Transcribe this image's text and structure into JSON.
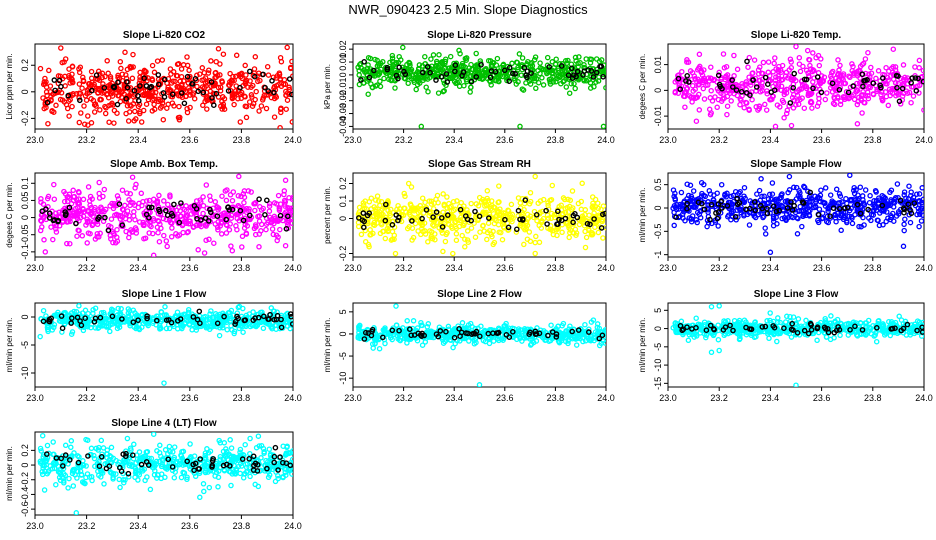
{
  "page_title": "NWR_090423  2.5 Min. Slope Diagnostics",
  "chart_data": [
    {
      "type": "scatter",
      "title": "Slope Li-820 CO2",
      "ylabel": "Licor ppm per min.",
      "color": "#ff0000",
      "xlim": [
        23.0,
        24.0
      ],
      "ylim": [
        -0.28,
        0.36
      ],
      "yticks": [
        -0.2,
        0.0,
        0.2
      ],
      "xticks": [
        23.0,
        23.2,
        23.4,
        23.6,
        23.8,
        24.0
      ],
      "center": 0.02,
      "spread": 0.1,
      "outliers": [
        [
          23.1,
          0.33
        ],
        [
          23.38,
          0.28
        ],
        [
          23.95,
          -0.27
        ],
        [
          23.05,
          -0.24
        ]
      ]
    },
    {
      "type": "scatter",
      "title": "Slope Li-820 Pressure",
      "ylabel": "kPa per min.",
      "color": "#00c000",
      "xlim": [
        23.0,
        24.0
      ],
      "ylim": [
        -0.042,
        0.024
      ],
      "yticks": [
        -0.04,
        -0.03,
        -0.02,
        -0.01,
        0.0,
        0.01,
        0.02
      ],
      "xticks": [
        23.0,
        23.2,
        23.4,
        23.6,
        23.8,
        24.0
      ],
      "center": 0.002,
      "spread": 0.006,
      "outliers": [
        [
          23.27,
          -0.04
        ],
        [
          23.66,
          -0.04
        ],
        [
          23.99,
          -0.04
        ],
        [
          23.06,
          -0.015
        ]
      ]
    },
    {
      "type": "scatter",
      "title": "Slope Li-820 Temp.",
      "ylabel": "degees C per min.",
      "color": "#ff00ff",
      "xlim": [
        23.0,
        24.0
      ],
      "ylim": [
        -0.015,
        0.018
      ],
      "yticks": [
        -0.01,
        0.0,
        0.01
      ],
      "xticks": [
        23.0,
        23.2,
        23.4,
        23.6,
        23.8,
        24.0
      ],
      "center": 0.002,
      "spread": 0.005,
      "outliers": [
        [
          23.5,
          0.017
        ],
        [
          23.88,
          0.016
        ],
        [
          23.42,
          -0.014
        ],
        [
          23.74,
          -0.013
        ]
      ]
    },
    {
      "type": "scatter",
      "title": "Slope Amb. Box Temp.",
      "ylabel": "degees C per min.",
      "color": "#ff00ff",
      "xlim": [
        23.0,
        24.0
      ],
      "ylim": [
        -0.115,
        0.13
      ],
      "yticks": [
        -0.1,
        -0.05,
        0.0,
        0.05,
        0.1
      ],
      "xticks": [
        23.0,
        23.2,
        23.4,
        23.6,
        23.8,
        24.0
      ],
      "center": 0.005,
      "spread": 0.04,
      "outliers": [
        [
          23.79,
          0.12
        ],
        [
          23.04,
          -0.1
        ],
        [
          23.46,
          -0.11
        ]
      ]
    },
    {
      "type": "scatter",
      "title": "Slope Gas Stream RH",
      "ylabel": "percent per min.",
      "color": "#ffff00",
      "xlim": [
        23.0,
        24.0
      ],
      "ylim": [
        -0.22,
        0.26
      ],
      "yticks": [
        -0.2,
        0.0,
        0.1,
        0.2
      ],
      "xticks": [
        23.0,
        23.2,
        23.4,
        23.6,
        23.8,
        24.0
      ],
      "center": 0.0,
      "spread": 0.07,
      "outliers": [
        [
          23.72,
          0.24
        ],
        [
          23.72,
          -0.2
        ],
        [
          23.22,
          0.2
        ]
      ]
    },
    {
      "type": "scatter",
      "title": "Slope Sample Flow",
      "ylabel": "ml/min per min.",
      "color": "#0000ff",
      "xlim": [
        23.0,
        24.0
      ],
      "ylim": [
        -1.05,
        0.75
      ],
      "yticks": [
        -1.0,
        -0.5,
        0.0,
        0.5
      ],
      "xticks": [
        23.0,
        23.2,
        23.4,
        23.6,
        23.8,
        24.0
      ],
      "center": 0.02,
      "spread": 0.2,
      "outliers": [
        [
          23.71,
          0.7
        ],
        [
          23.4,
          -0.95
        ],
        [
          23.92,
          -0.82
        ]
      ]
    },
    {
      "type": "scatter",
      "title": "Slope Line 1 Flow",
      "ylabel": "ml/min per min.",
      "color": "#00ffff",
      "xlim": [
        23.0,
        24.0
      ],
      "ylim": [
        -12.5,
        2.5
      ],
      "yticks": [
        -10,
        -5,
        0
      ],
      "xticks": [
        23.0,
        23.2,
        23.4,
        23.6,
        23.8,
        24.0
      ],
      "center": -0.6,
      "spread": 0.9,
      "outliers": [
        [
          23.5,
          -11.8
        ],
        [
          23.17,
          2.0
        ],
        [
          23.02,
          -3.5
        ]
      ]
    },
    {
      "type": "scatter",
      "title": "Slope Line 2 Flow",
      "ylabel": "ml/min per min.",
      "color": "#00ffff",
      "xlim": [
        23.0,
        24.0
      ],
      "ylim": [
        -12.0,
        7.0
      ],
      "yticks": [
        -10,
        -5,
        0,
        5
      ],
      "xticks": [
        23.0,
        23.2,
        23.4,
        23.6,
        23.8,
        24.0
      ],
      "center": 0.0,
      "spread": 1.0,
      "outliers": [
        [
          23.5,
          -11.5
        ],
        [
          23.17,
          6.3
        ],
        [
          23.08,
          -3.2
        ]
      ]
    },
    {
      "type": "scatter",
      "title": "Slope Line 3 Flow",
      "ylabel": "ml/min per min.",
      "color": "#00ffff",
      "xlim": [
        23.0,
        24.0
      ],
      "ylim": [
        -16.0,
        7.0
      ],
      "yticks": [
        -15,
        -10,
        -5,
        0,
        5
      ],
      "xticks": [
        23.0,
        23.2,
        23.4,
        23.6,
        23.8,
        24.0
      ],
      "center": 0.0,
      "spread": 1.2,
      "outliers": [
        [
          23.5,
          -15.5
        ],
        [
          23.17,
          6.0
        ],
        [
          23.2,
          6.2
        ],
        [
          23.17,
          -6.5
        ],
        [
          23.2,
          -6.0
        ]
      ]
    },
    {
      "type": "scatter",
      "title": "Slope Line 4 (LT) Flow",
      "ylabel": "ml/min per min.",
      "color": "#00ffff",
      "xlim": [
        23.0,
        24.0
      ],
      "ylim": [
        -0.68,
        0.45
      ],
      "yticks": [
        -0.6,
        -0.4,
        -0.2,
        0.0,
        0.2
      ],
      "xticks": [
        23.0,
        23.2,
        23.4,
        23.6,
        23.8,
        24.0
      ],
      "center": 0.02,
      "spread": 0.13,
      "outliers": [
        [
          23.16,
          -0.65
        ],
        [
          23.03,
          0.4
        ],
        [
          23.46,
          0.42
        ]
      ]
    }
  ]
}
